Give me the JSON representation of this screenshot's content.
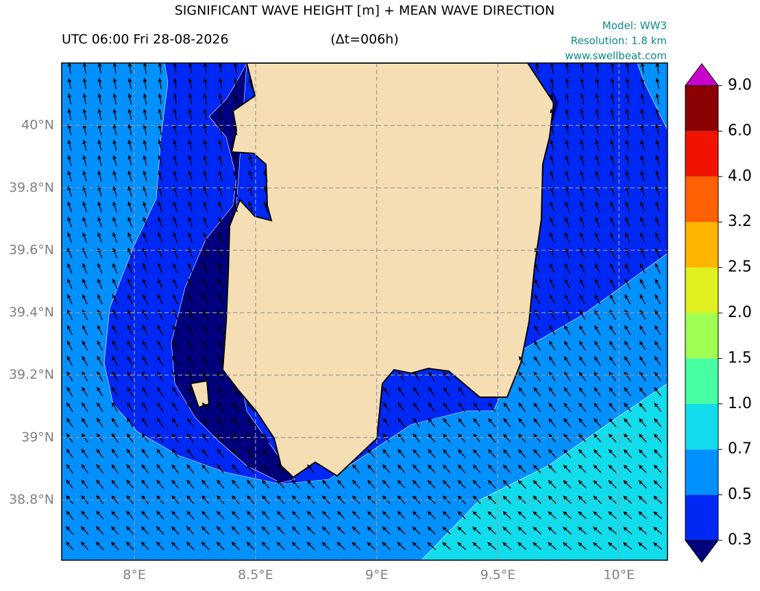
{
  "header": {
    "title": "SIGNIFICANT WAVE HEIGHT [m] + MEAN WAVE DIRECTION",
    "time": "UTC 06:00 Fri 28-08-2026",
    "step": "(Δt=006h)",
    "model": "Model: WW3",
    "resolution": "Resolution: 1.8 km",
    "site": "www.swellbeat.com"
  },
  "map": {
    "xlim": [
      7.7,
      10.2
    ],
    "ylim": [
      38.607,
      40.2
    ],
    "xticks": [
      {
        "value": 8,
        "label": "8°E"
      },
      {
        "value": 8.5,
        "label": "8.5°E"
      },
      {
        "value": 9,
        "label": "9°E"
      },
      {
        "value": 9.5,
        "label": "9.5°E"
      },
      {
        "value": 10,
        "label": "10°E"
      }
    ],
    "yticks": [
      {
        "value": 38.8,
        "label": "38.8°N"
      },
      {
        "value": 39,
        "label": "39°N"
      },
      {
        "value": 39.2,
        "label": "39.2°N"
      },
      {
        "value": 39.4,
        "label": "39.4°N"
      },
      {
        "value": 39.6,
        "label": "39.6°N"
      },
      {
        "value": 39.8,
        "label": "39.8°N"
      },
      {
        "value": 40,
        "label": "40°N"
      }
    ],
    "grid": true
  },
  "colorbar": {
    "levels": [
      0.3,
      0.5,
      0.7,
      {
        "value": 1,
        "label": "1.0"
      },
      1.5,
      {
        "value": 2,
        "label": "2.0"
      },
      2.5,
      3.2,
      {
        "value": 4,
        "label": "4.0"
      },
      {
        "value": 6,
        "label": "6.0"
      },
      {
        "value": 9,
        "label": "9.0"
      }
    ],
    "colors": [
      "#0028f5",
      "#0090ff",
      "#10dcec",
      "#45ffa2",
      "#a0ff50",
      "#e0f020",
      "#ffb400",
      "#ff6000",
      "#f01400",
      "#8b0000"
    ],
    "under_color": "#00007f",
    "over_color": "#cc00cc"
  }
}
